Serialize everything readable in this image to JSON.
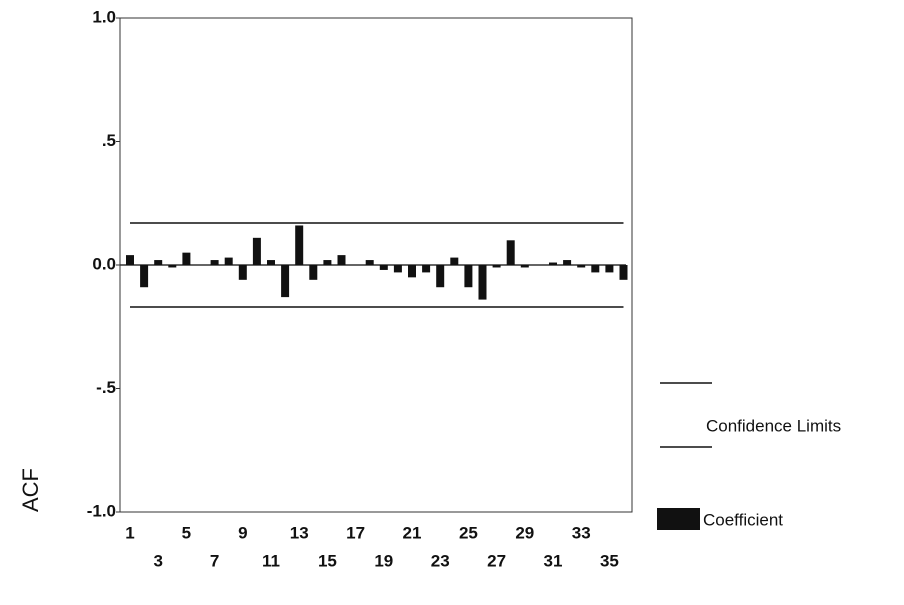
{
  "chart_data": {
    "type": "bar",
    "y_label": "ACF",
    "categories": [
      1,
      null,
      3,
      null,
      5,
      null,
      7,
      null,
      9,
      null,
      11,
      null,
      13,
      null,
      15,
      null,
      17,
      null,
      19,
      null,
      21,
      null,
      23,
      null,
      25,
      null,
      27,
      null,
      29,
      null,
      31,
      null,
      33,
      null,
      35,
      null
    ],
    "series": [
      {
        "name": "Coefficient",
        "color": "#111111",
        "values": [
          0.04,
          -0.09,
          0.02,
          -0.01,
          0.05,
          0.0,
          0.02,
          0.03,
          -0.06,
          0.11,
          0.02,
          -0.13,
          0.16,
          -0.06,
          0.02,
          0.04,
          0.0,
          0.02,
          -0.02,
          -0.03,
          -0.05,
          -0.03,
          -0.09,
          0.03,
          -0.09,
          -0.14,
          -0.01,
          0.1,
          -0.01,
          0.0,
          0.01,
          0.02,
          -0.01,
          -0.03,
          -0.03,
          -0.06
        ]
      }
    ],
    "confidence_limits": {
      "name": "Confidence Limits",
      "color": "#111111",
      "values": [
        0.17,
        -0.17
      ]
    },
    "ylim": [
      -1,
      1
    ],
    "yticks": [
      {
        "value": 1,
        "label": "1.0"
      },
      {
        "value": 0.5,
        "label": ".5"
      },
      {
        "value": 0,
        "label": "0.0"
      },
      {
        "value": -0.5,
        "label": "-.5"
      },
      {
        "value": -1,
        "label": "-1.0"
      }
    ]
  }
}
